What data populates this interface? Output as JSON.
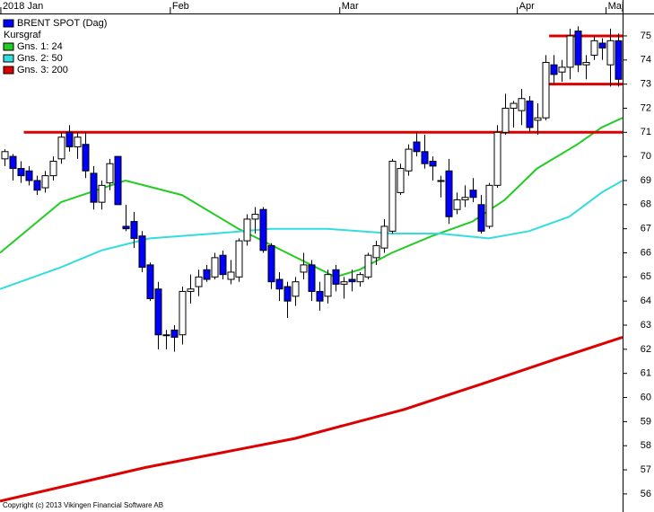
{
  "chart_data": {
    "type": "candlestick",
    "legend_title": "Kursgraf",
    "copyright": "Copyright (c) 2013 Vikingen Financial Software AB",
    "candles": {
      "name": "BRENT SPOT (Dag)",
      "color": "#0000ff",
      "up_color": "#ffffff",
      "open": [
        69.9,
        70.0,
        69.5,
        69.4,
        69.0,
        68.7,
        69.2,
        69.9,
        71.0,
        70.4,
        70.5,
        69.3,
        68.1,
        68.9,
        70.0,
        67.1,
        67.3,
        66.7,
        65.5,
        64.5,
        62.6,
        62.8,
        62.6,
        64.4,
        64.6,
        65.3,
        65.0,
        65.9,
        64.9,
        65.0,
        66.5,
        67.4,
        67.8,
        66.3,
        64.9,
        64.6,
        64.2,
        65.2,
        65.5,
        64.4,
        64.2,
        65.3,
        64.7,
        64.9,
        64.8,
        65.0,
        65.8,
        66.2,
        66.9,
        68.5,
        69.4,
        70.6,
        70.2,
        69.8,
        69.0,
        69.4,
        67.8,
        68.2,
        68.6,
        68.0,
        67.1,
        68.8,
        71.0,
        72.0,
        71.9,
        72.3,
        71.5,
        71.6,
        73.8,
        73.5,
        73.7,
        75.2,
        73.8,
        74.2,
        74.7,
        73.8,
        74.8
      ],
      "high": [
        70.3,
        70.1,
        69.8,
        69.6,
        69.2,
        69.4,
        70.0,
        71.0,
        71.3,
        71.0,
        71.0,
        69.6,
        69.0,
        69.9,
        70.0,
        68.0,
        67.7,
        66.9,
        65.6,
        64.8,
        62.8,
        63.0,
        64.6,
        65.1,
        65.3,
        65.5,
        66.0,
        66.1,
        65.7,
        66.6,
        67.6,
        67.9,
        67.9,
        66.4,
        65.2,
        64.8,
        65.0,
        66.0,
        65.7,
        64.8,
        65.3,
        65.5,
        65.0,
        65.3,
        65.2,
        66.0,
        66.5,
        67.4,
        69.9,
        69.7,
        70.5,
        71.0,
        70.9,
        70.0,
        69.2,
        69.9,
        68.5,
        68.8,
        69.1,
        68.4,
        68.9,
        71.3,
        72.6,
        72.3,
        72.8,
        72.5,
        72.2,
        74.2,
        74.2,
        74.0,
        75.3,
        75.4,
        74.2,
        75.0,
        74.9,
        75.3,
        75.1
      ],
      "low": [
        69.6,
        69.0,
        68.9,
        68.8,
        68.4,
        68.5,
        69.0,
        69.7,
        70.2,
        69.9,
        69.1,
        67.8,
        67.8,
        68.6,
        68.0,
        66.9,
        66.2,
        65.2,
        64.0,
        62.0,
        62.0,
        61.9,
        62.2,
        63.9,
        64.2,
        64.8,
        64.9,
        64.9,
        64.7,
        64.8,
        66.3,
        66.8,
        66.0,
        64.5,
        64.0,
        63.3,
        63.8,
        64.9,
        64.0,
        63.6,
        63.9,
        64.4,
        64.1,
        64.4,
        64.6,
        64.9,
        65.5,
        66.0,
        66.8,
        68.4,
        69.2,
        70.0,
        69.5,
        69.0,
        68.3,
        67.2,
        67.6,
        67.9,
        68.1,
        66.8,
        67.0,
        68.7,
        70.9,
        71.2,
        71.3,
        71.0,
        70.9,
        71.5,
        73.0,
        73.1,
        73.2,
        73.5,
        73.2,
        74.0,
        74.0,
        72.9,
        72.9
      ],
      "close": [
        70.2,
        69.5,
        69.2,
        69.0,
        68.6,
        69.2,
        69.8,
        70.8,
        70.4,
        70.8,
        69.4,
        68.1,
        68.8,
        69.7,
        68.0,
        67.0,
        66.6,
        65.4,
        64.1,
        62.6,
        62.6,
        62.5,
        64.4,
        64.5,
        65.0,
        64.9,
        65.8,
        65.1,
        65.2,
        66.5,
        67.4,
        67.6,
        66.1,
        64.8,
        64.5,
        64.0,
        64.8,
        65.5,
        64.4,
        64.0,
        65.1,
        64.7,
        64.8,
        64.8,
        65.1,
        65.9,
        66.3,
        67.1,
        69.8,
        69.5,
        70.3,
        70.2,
        69.7,
        69.6,
        69.0,
        67.5,
        68.2,
        68.3,
        68.3,
        66.9,
        68.8,
        71.0,
        72.0,
        72.2,
        72.4,
        71.2,
        71.6,
        73.9,
        73.4,
        73.7,
        75.0,
        73.8,
        73.9,
        74.8,
        74.5,
        74.8,
        73.2
      ]
    },
    "lines": [
      {
        "name": "Gns. 1: 24",
        "color": "#22cc22",
        "x": [
          -0.55,
          7,
          15,
          22,
          29,
          35,
          41,
          44,
          48,
          53,
          58,
          62,
          66,
          71,
          74,
          76.6
        ],
        "values": [
          66.0,
          68.1,
          69.0,
          68.4,
          67.0,
          66.0,
          65.0,
          65.3,
          66.0,
          66.7,
          67.3,
          68.2,
          69.5,
          70.5,
          71.2,
          71.6
        ]
      },
      {
        "name": "Gns. 2: 50",
        "color": "#33dddd",
        "x": [
          -0.55,
          7,
          12,
          18,
          26,
          33,
          40,
          48,
          54,
          60,
          65,
          70,
          74,
          76.6
        ],
        "values": [
          64.5,
          65.4,
          66.1,
          66.6,
          66.8,
          67.0,
          67.0,
          66.8,
          66.8,
          66.6,
          66.9,
          67.5,
          68.5,
          69.0
        ]
      },
      {
        "name": "Gns. 3: 200",
        "color": "#dd0000",
        "x": [
          -0.55,
          17.5,
          36,
          49.5,
          59.5,
          68.4,
          76.6
        ],
        "values": [
          55.7,
          57.1,
          58.3,
          59.5,
          60.6,
          61.6,
          62.5
        ]
      }
    ],
    "hlines": [
      {
        "color": "#dd0000",
        "value": 71,
        "x": [
          2.4,
          76.6
        ]
      },
      {
        "color": "#dd0000",
        "value": 75,
        "x": [
          67.5,
          76.6
        ]
      },
      {
        "color": "#dd0000",
        "value": 73,
        "x": [
          67.5,
          76.6
        ]
      }
    ],
    "xlim": [
      -0.55,
      76.6
    ],
    "xticks": [
      {
        "value": 0,
        "label": "2018 Jan"
      },
      {
        "value": 21,
        "label": "Feb"
      },
      {
        "value": 42,
        "label": "Mar"
      },
      {
        "value": 64,
        "label": "Apr"
      },
      {
        "value": 75,
        "label": "Maj"
      }
    ],
    "ylim": [
      55.25,
      75.93
    ],
    "yticks": [
      56,
      57,
      58,
      59,
      60,
      61,
      62,
      63,
      64,
      65,
      66,
      67,
      68,
      69,
      70,
      71,
      72,
      73,
      74,
      75
    ]
  }
}
